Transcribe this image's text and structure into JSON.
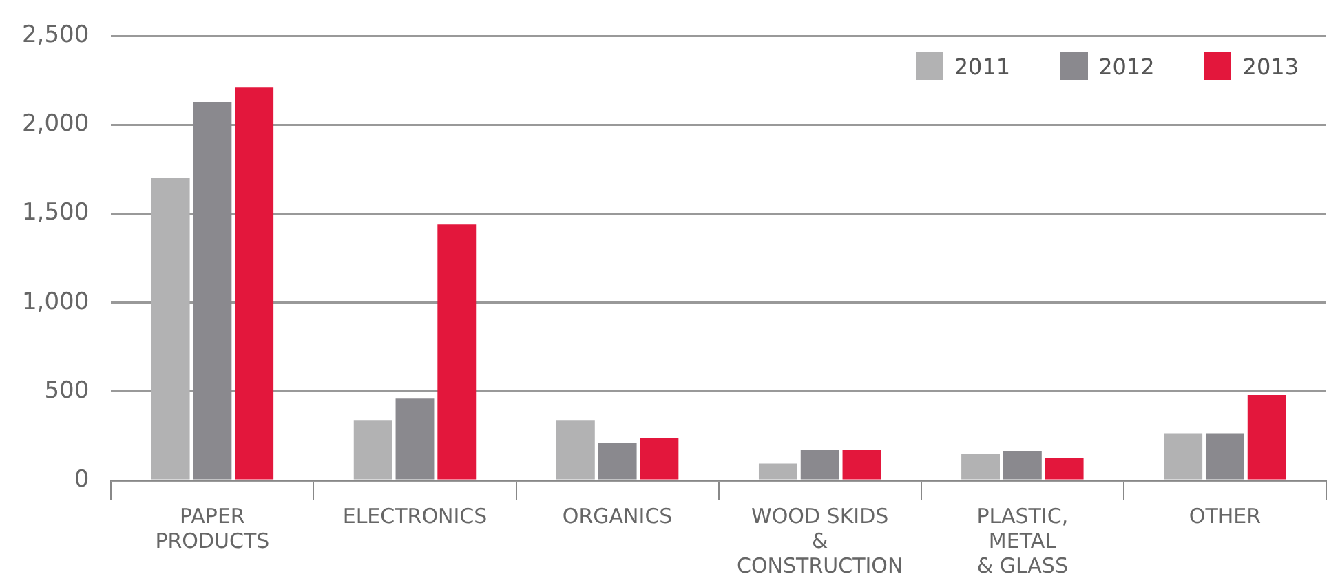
{
  "chart_data": {
    "type": "bar",
    "categories": [
      "PAPER\nPRODUCTS",
      "ELECTRONICS",
      "ORGANICS",
      "WOOD SKIDS\n&\nCONSTRUCTION",
      "PLASTIC,\nMETAL\n& GLASS",
      "OTHER"
    ],
    "series": [
      {
        "name": "2011",
        "color": "#b2b2b3",
        "values": [
          1700,
          340,
          340,
          95,
          150,
          265
        ]
      },
      {
        "name": "2012",
        "color": "#8a898e",
        "values": [
          2130,
          460,
          210,
          170,
          165,
          265
        ]
      },
      {
        "name": "2013",
        "color": "#e3173c",
        "values": [
          2210,
          1440,
          240,
          170,
          125,
          480
        ]
      }
    ],
    "ylim": [
      0,
      2500
    ],
    "yticks": [
      0,
      500,
      {
        "value": 1000,
        "label": "1,000"
      },
      {
        "value": 1500,
        "label": "1,500"
      },
      {
        "value": 2000,
        "label": "2,000"
      },
      {
        "value": 2500,
        "label": "2,500"
      }
    ],
    "grid": "y",
    "legend": "top right"
  }
}
